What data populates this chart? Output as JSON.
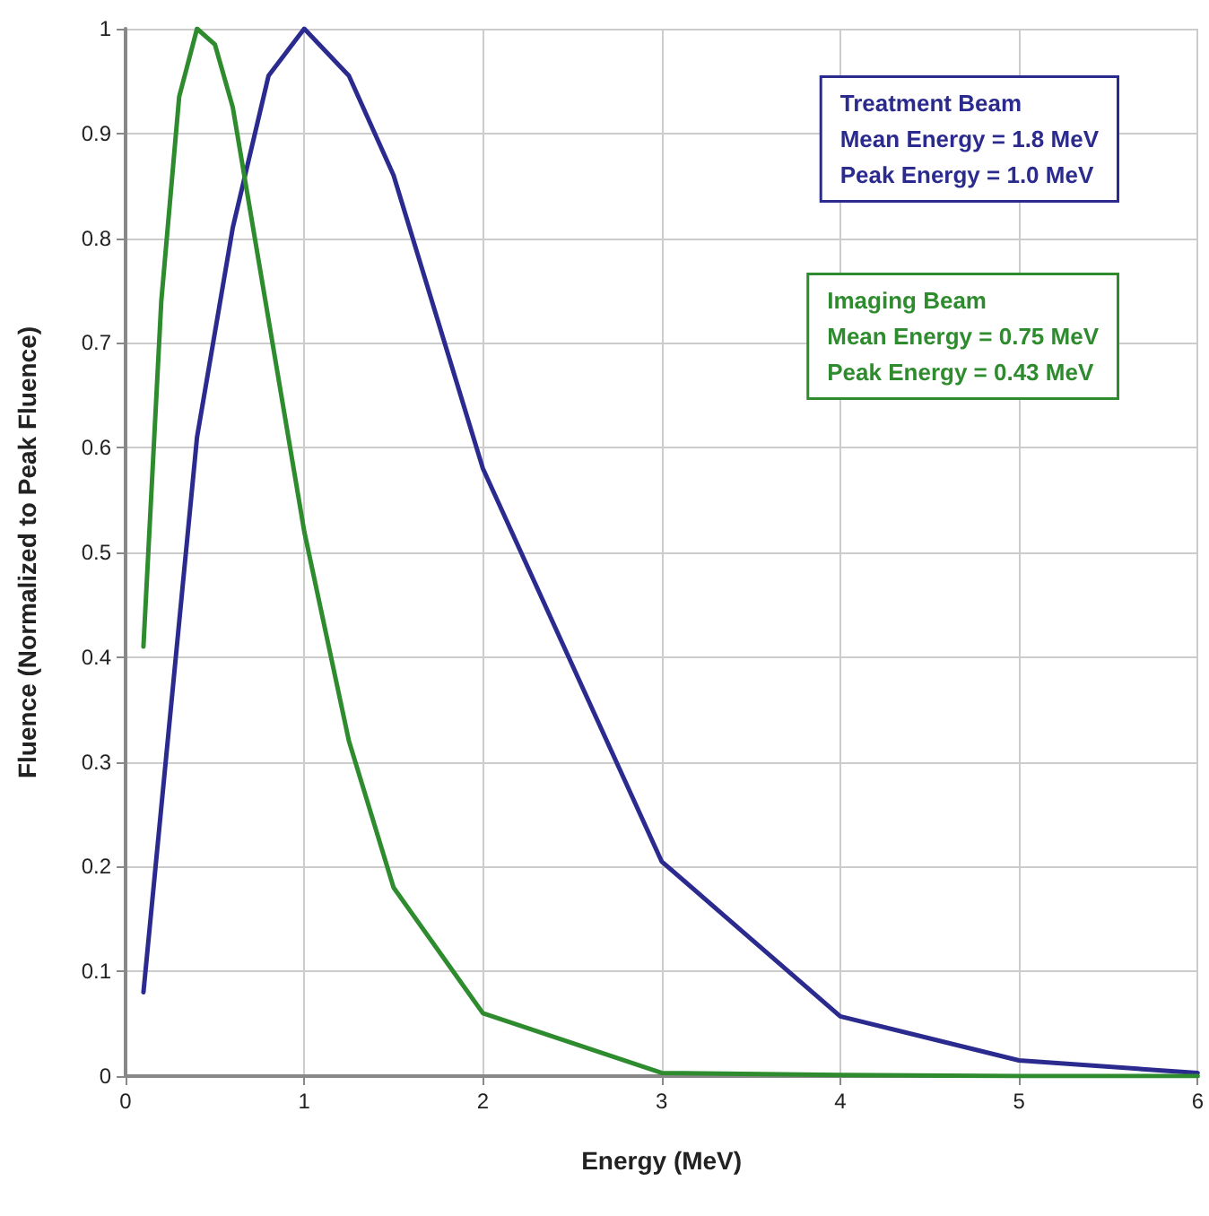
{
  "chart_data": {
    "type": "line",
    "xlabel": "Energy (MeV)",
    "ylabel": "Fluence (Normalized to Peak Fluence)",
    "xlim": [
      0,
      6
    ],
    "xticks": [
      0,
      1,
      2,
      3,
      4,
      5,
      6
    ],
    "ylim": [
      0,
      1
    ],
    "yticks": [
      0,
      0.1,
      0.2,
      0.3,
      0.4,
      0.5,
      0.6,
      0.7,
      0.8,
      0.9,
      1
    ],
    "grid": true,
    "marker": "none",
    "line_style": "solid",
    "series": [
      {
        "color": "#2b2b8f",
        "x": [
          0.1,
          0.4,
          0.6,
          0.8,
          1,
          1.25,
          1.5,
          2,
          3,
          4,
          5,
          6
        ],
        "values": [
          0.08,
          0.61,
          0.81,
          0.955,
          1,
          0.955,
          0.86,
          0.58,
          0.205,
          0.057,
          0.015,
          0.003
        ]
      },
      {
        "color": "#2e8b2e",
        "x": [
          0.1,
          0.2,
          0.3,
          0.4,
          0.5,
          0.6,
          1,
          1.25,
          1.5,
          2,
          3,
          4,
          5,
          6
        ],
        "values": [
          0.41,
          0.74,
          0.935,
          1,
          0.985,
          0.925,
          0.52,
          0.32,
          0.18,
          0.06,
          0.003,
          0.001,
          0,
          0
        ]
      }
    ],
    "annotations": [
      "Treatment Beam\nMean Energy = 1.8 MeV\nPeak Energy = 1.0 MeV",
      "Imaging Beam\nMean Energy = 0.75 MeV\nPeak Energy = 0.43 MeV"
    ]
  }
}
